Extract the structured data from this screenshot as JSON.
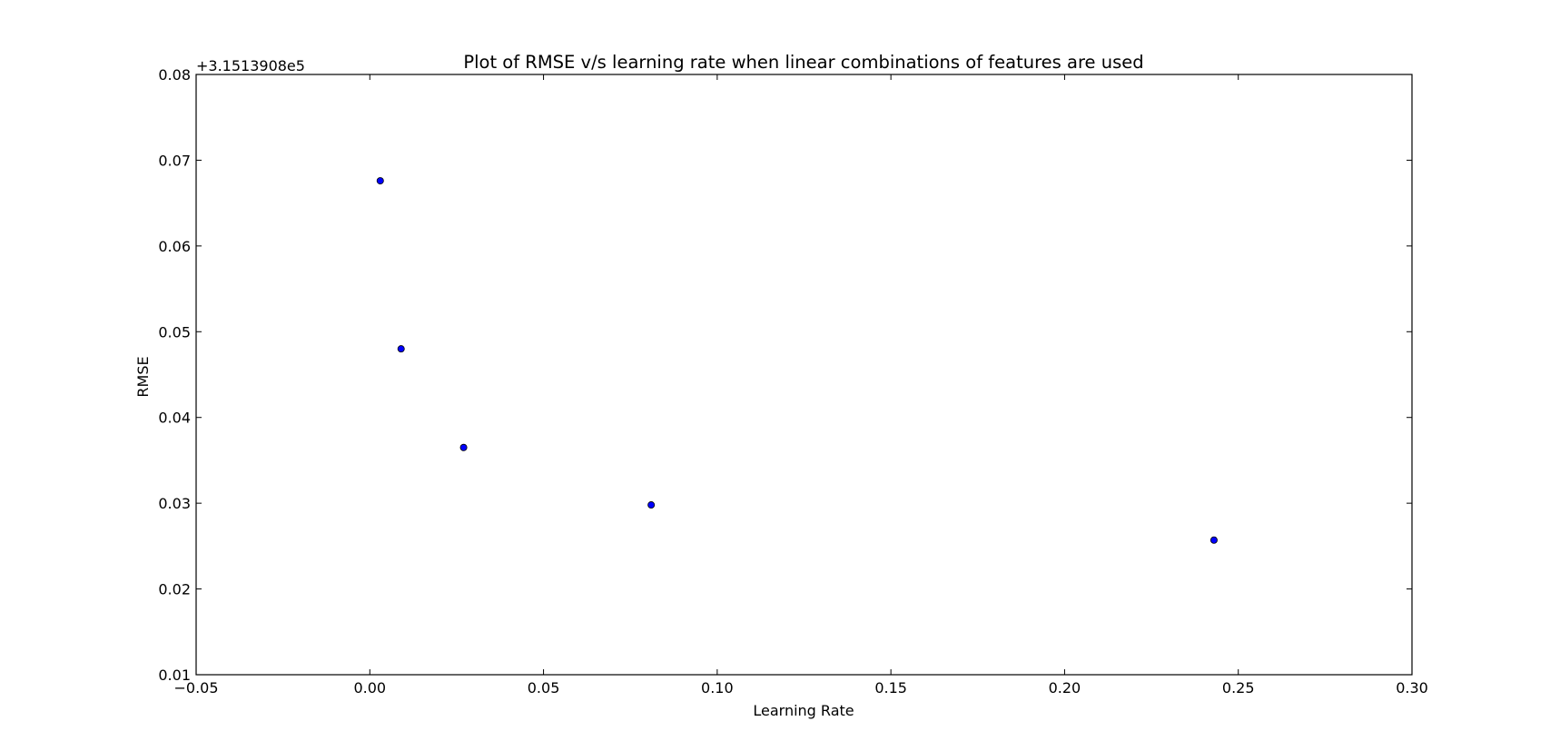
{
  "chart_data": {
    "type": "scatter",
    "title": "Plot of RMSE v/s learning rate when linear combinations of features are used",
    "xlabel": "Learning Rate",
    "ylabel": "RMSE",
    "y_offset_label": "+3.1513908e5",
    "xlim": [
      -0.05,
      0.3
    ],
    "ylim": [
      0.01,
      0.08
    ],
    "x_ticks": [
      -0.05,
      0.0,
      0.05,
      0.1,
      0.15,
      0.2,
      0.25,
      0.3
    ],
    "x_tick_labels": [
      "−0.05",
      "0.00",
      "0.05",
      "0.10",
      "0.15",
      "0.20",
      "0.25",
      "0.30"
    ],
    "y_ticks": [
      0.01,
      0.02,
      0.03,
      0.04,
      0.05,
      0.06,
      0.07,
      0.08
    ],
    "y_tick_labels": [
      "0.01",
      "0.02",
      "0.03",
      "0.04",
      "0.05",
      "0.06",
      "0.07",
      "0.08"
    ],
    "grid": false,
    "marker_color": "#0000ff",
    "points": [
      {
        "x": 0.003,
        "y": 0.0676
      },
      {
        "x": 0.009,
        "y": 0.048
      },
      {
        "x": 0.027,
        "y": 0.0365
      },
      {
        "x": 0.081,
        "y": 0.0298
      },
      {
        "x": 0.243,
        "y": 0.0257
      }
    ]
  }
}
